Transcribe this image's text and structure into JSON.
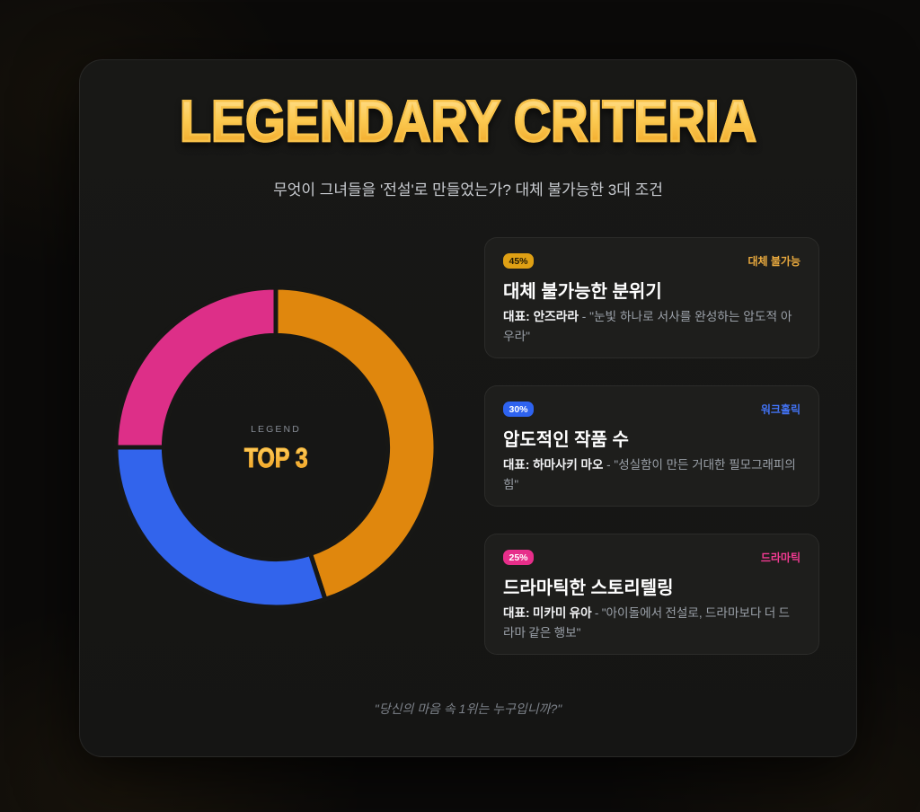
{
  "page": {
    "title": "LEGENDARY CRITERIA",
    "subtitle": "무엇이 그녀들을 '전설'로 만들었는가? 대체 불가능한 3대 조건",
    "footer_quote": "\"당신의 마음 속 1위는 누구입니까?\""
  },
  "chart_data": {
    "type": "pie",
    "title": "LEGEND TOP 3",
    "categories": [
      "대체 불가능",
      "워크홀릭",
      "드라마틱"
    ],
    "values": [
      45,
      30,
      25
    ],
    "colors": [
      "#e0870d",
      "#3264ec",
      "#dd2f88"
    ],
    "start_angle_deg": 0,
    "direction": "clockwise",
    "inner_radius_ratio": 0.7,
    "center_label": "LEGEND",
    "center_value": "TOP 3",
    "legend_position": "center"
  },
  "cards": [
    {
      "percent": "45%",
      "badge_color": "#dfa014",
      "badge_text_color": "#241a03",
      "tag": "대체 불가능",
      "tag_color": "#eaaa3e",
      "title": "대체 불가능한 분위기",
      "rep_label": "대표:",
      "rep_name": "안즈라라",
      "rep_quote": "- \"눈빛 하나로 서사를 완성하는 압도적 아우라\""
    },
    {
      "percent": "30%",
      "badge_color": "#2e63f0",
      "badge_text_color": "#ffffff",
      "tag": "워크홀릭",
      "tag_color": "#4272f2",
      "title": "압도적인 작품 수",
      "rep_label": "대표:",
      "rep_name": "하마사키 마오",
      "rep_quote": "- \"성실함이 만든 거대한 필모그래피의 힘\""
    },
    {
      "percent": "25%",
      "badge_color": "#e72e8a",
      "badge_text_color": "#ffffff",
      "tag": "드라마틱",
      "tag_color": "#f23a92",
      "title": "드라마틱한 스토리텔링",
      "rep_label": "대표:",
      "rep_name": "미카미 유아",
      "rep_quote": "- \"아이돌에서 전설로, 드라마보다 더 드라마 같은 행보\""
    }
  ]
}
